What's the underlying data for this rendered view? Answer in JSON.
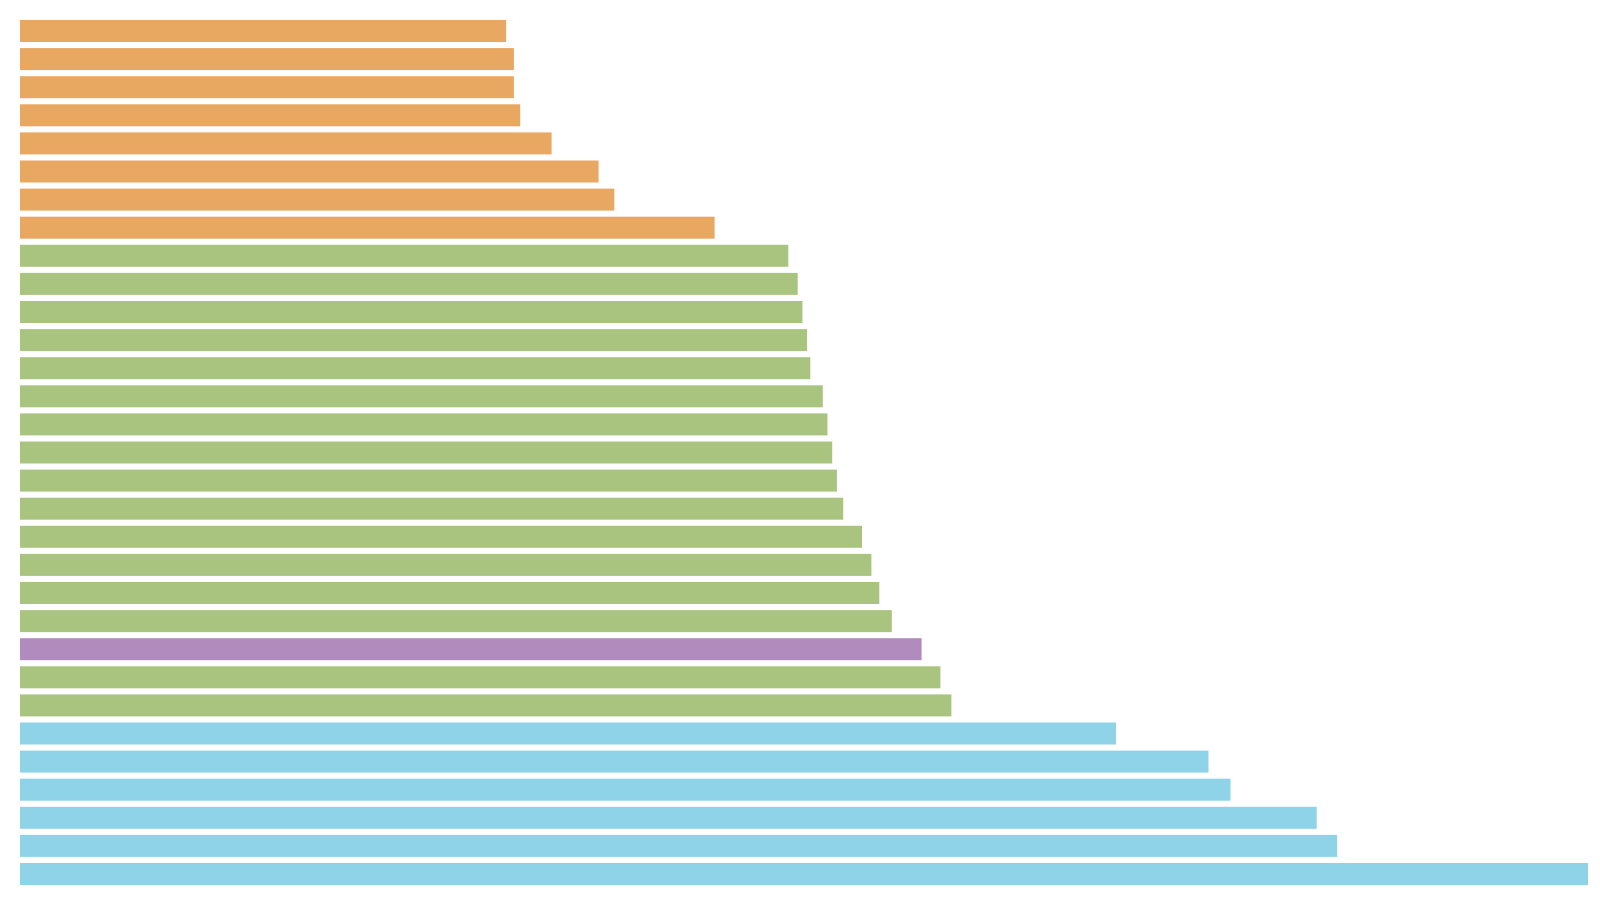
{
  "chart_data": {
    "type": "bar",
    "orientation": "horizontal",
    "title": "",
    "xlabel": "",
    "ylabel": "",
    "xlim": [
      0,
      100
    ],
    "grid": false,
    "legend": "none",
    "values": [
      31.0,
      31.5,
      31.5,
      31.9,
      33.9,
      36.9,
      37.9,
      44.3,
      49.0,
      49.6,
      49.9,
      50.2,
      50.4,
      51.2,
      51.5,
      51.8,
      52.1,
      52.5,
      53.7,
      54.3,
      54.8,
      55.6,
      57.5,
      58.7,
      59.4,
      69.9,
      75.8,
      77.2,
      82.7,
      84.0,
      100.0
    ],
    "colors": [
      "#e8a862",
      "#e8a862",
      "#e8a862",
      "#e8a862",
      "#e8a862",
      "#e8a862",
      "#e8a862",
      "#e8a862",
      "#a9c47f",
      "#a9c47f",
      "#a9c47f",
      "#a9c47f",
      "#a9c47f",
      "#a9c47f",
      "#a9c47f",
      "#a9c47f",
      "#a9c47f",
      "#a9c47f",
      "#a9c47f",
      "#a9c47f",
      "#a9c47f",
      "#a9c47f",
      "#b18bbd",
      "#a9c47f",
      "#a9c47f",
      "#8fd3e8",
      "#8fd3e8",
      "#8fd3e8",
      "#8fd3e8",
      "#8fd3e8",
      "#8fd3e8"
    ]
  }
}
